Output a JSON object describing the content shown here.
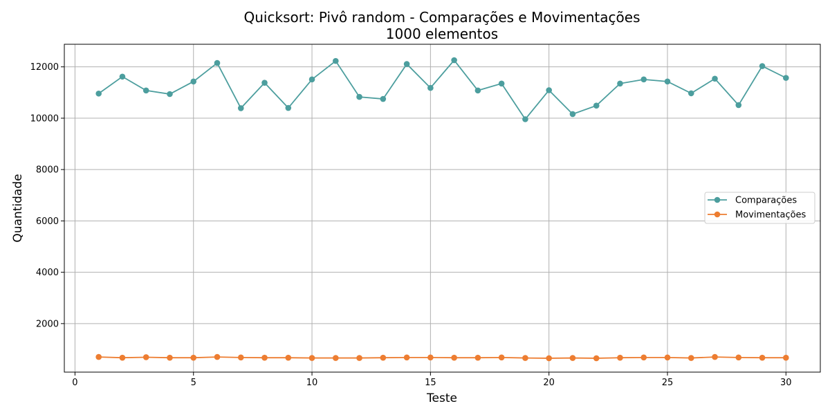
{
  "chart_data": {
    "type": "line",
    "title": "Quicksort: Pivô random - Comparações e Movimentações",
    "subtitle": "1000 elementos",
    "xlabel": "Teste",
    "ylabel": "Quantidade",
    "xlim": [
      -0.45,
      31.45
    ],
    "ylim": [
      110,
      12880
    ],
    "x_ticks": [
      0,
      5,
      10,
      15,
      20,
      25,
      30
    ],
    "y_ticks": [
      2000,
      4000,
      6000,
      8000,
      10000,
      12000
    ],
    "grid": true,
    "legend_position": "center-right",
    "x": [
      1,
      2,
      3,
      4,
      5,
      6,
      7,
      8,
      9,
      10,
      11,
      12,
      13,
      14,
      15,
      16,
      17,
      18,
      19,
      20,
      21,
      22,
      23,
      24,
      25,
      26,
      27,
      28,
      29,
      30
    ],
    "series": [
      {
        "name": "Comparações",
        "color": "#4c9e9e",
        "marker": "circle",
        "values": [
          10960,
          11620,
          11080,
          10940,
          11430,
          12150,
          10390,
          11380,
          10400,
          11510,
          12230,
          10830,
          10750,
          12110,
          11180,
          12260,
          11080,
          11350,
          9960,
          11090,
          10160,
          10490,
          11350,
          11510,
          11430,
          10970,
          11540,
          10510,
          12030,
          11570
        ]
      },
      {
        "name": "Movimentações",
        "color": "#ed7d31",
        "marker": "circle",
        "values": [
          700,
          670,
          690,
          670,
          670,
          700,
          680,
          670,
          670,
          660,
          660,
          660,
          670,
          680,
          680,
          670,
          670,
          680,
          660,
          650,
          660,
          650,
          670,
          680,
          680,
          660,
          700,
          680,
          670,
          670
        ]
      }
    ]
  }
}
